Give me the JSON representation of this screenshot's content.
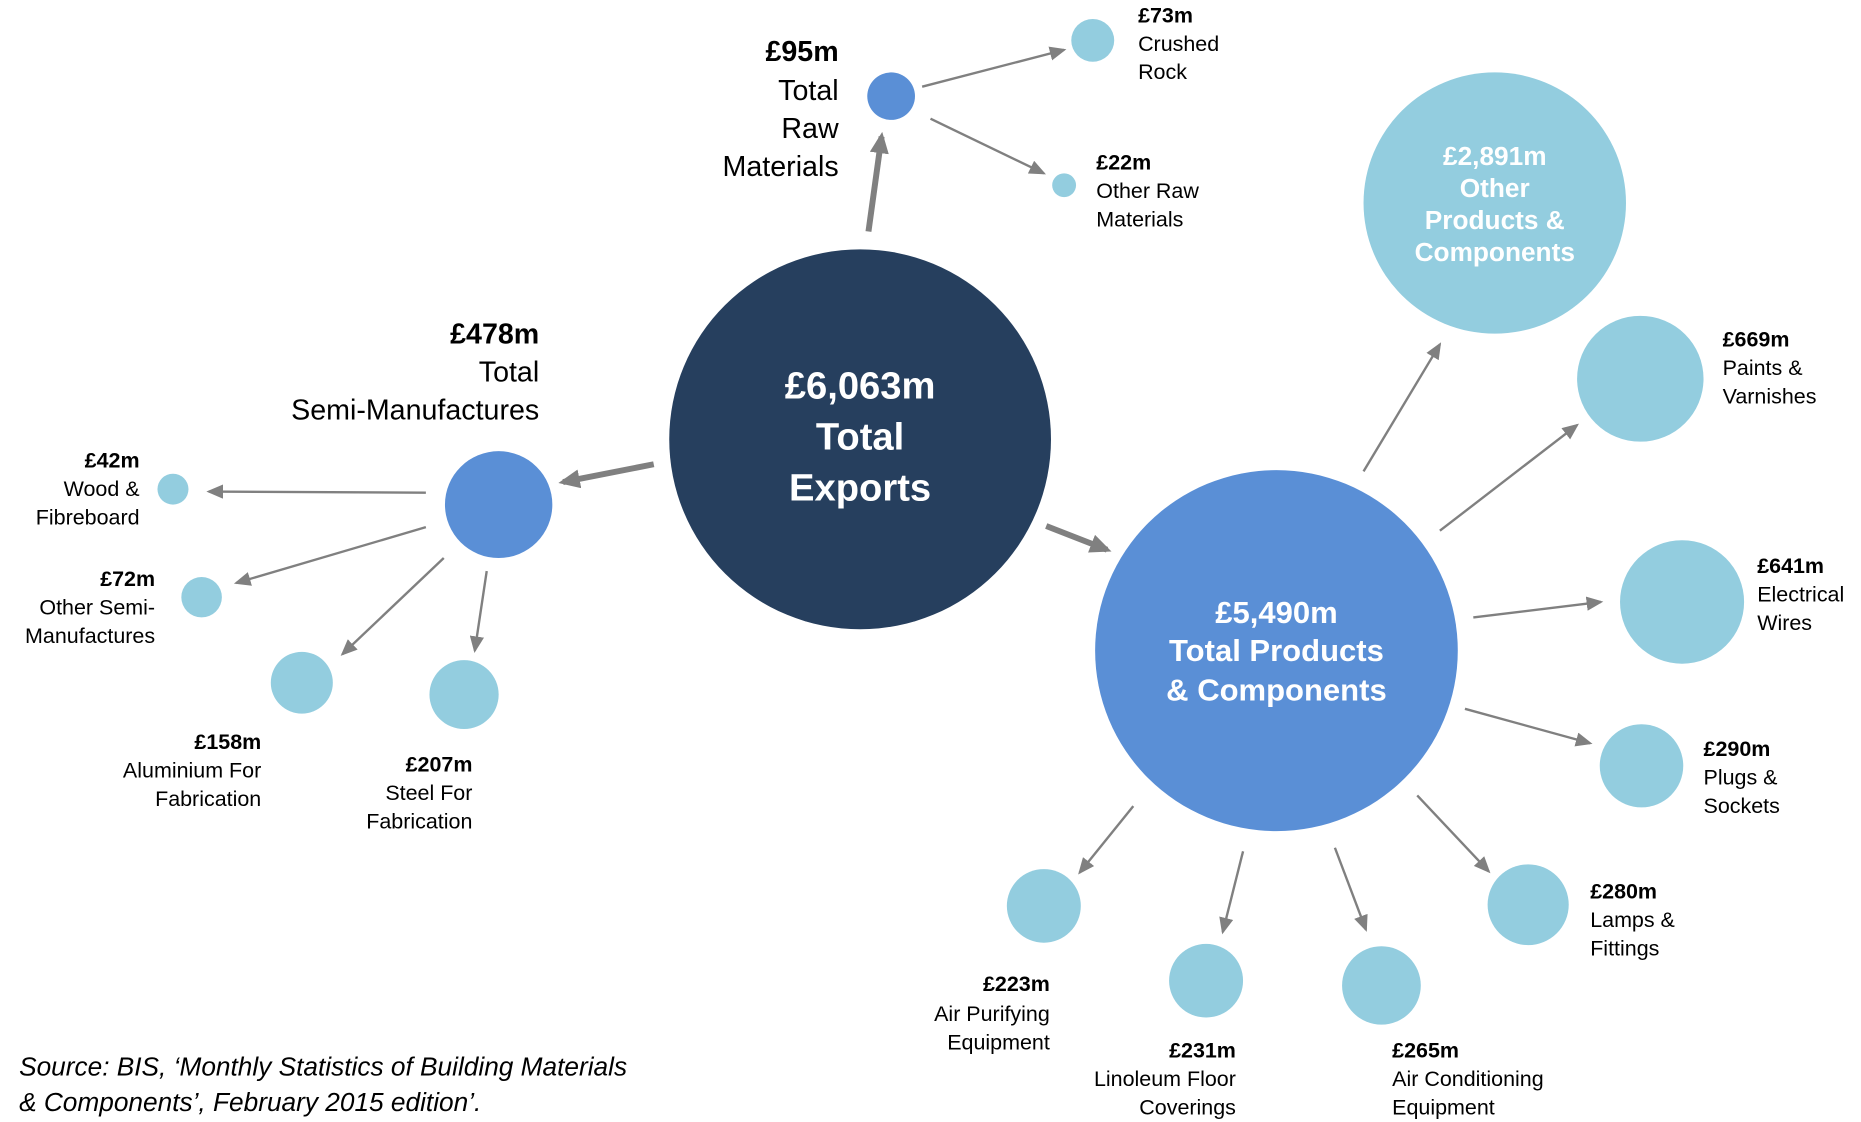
{
  "nodes": [
    {
      "value": "£6,063m",
      "label": [
        "Total",
        "Exports"
      ]
    },
    {
      "value": "£95m",
      "label": [
        "Total",
        "Raw",
        "Materials"
      ]
    },
    {
      "value": "£73m",
      "label": [
        "Crushed",
        "Rock"
      ]
    },
    {
      "value": "£22m",
      "label": [
        "Other Raw",
        "Materials"
      ]
    },
    {
      "value": "£478m",
      "label": [
        "Total",
        "Semi-Manufactures"
      ]
    },
    {
      "value": "£42m",
      "label": [
        "Wood &",
        "Fibreboard"
      ]
    },
    {
      "value": "£72m",
      "label": [
        "Other Semi-",
        "Manufactures"
      ]
    },
    {
      "value": "£158m",
      "label": [
        "Aluminium For",
        "Fabrication"
      ]
    },
    {
      "value": "£207m",
      "label": [
        "Steel For",
        "Fabrication"
      ]
    },
    {
      "value": "£5,490m",
      "label": [
        "Total Products",
        "& Components"
      ]
    },
    {
      "value": "£2,891m",
      "label": [
        "Other",
        "Products &",
        "Components"
      ]
    },
    {
      "value": "£669m",
      "label": [
        "Paints &",
        "Varnishes"
      ]
    },
    {
      "value": "£641m",
      "label": [
        "Electrical",
        "Wires"
      ]
    },
    {
      "value": "£290m",
      "label": [
        "Plugs &",
        "Sockets"
      ]
    },
    {
      "value": "£280m",
      "label": [
        "Lamps &",
        "Fittings"
      ]
    },
    {
      "value": "£223m",
      "label": [
        "Air Purifying",
        "Equipment"
      ]
    },
    {
      "value": "£231m",
      "label": [
        "Linoleum Floor",
        "Coverings"
      ]
    },
    {
      "value": "£265m",
      "label": [
        "Air Conditioning",
        "Equipment"
      ]
    }
  ],
  "source": [
    "Source: BIS, ‘Monthly Statistics of Building  Materials",
    "& Components’, February 2015 edition’."
  ]
}
